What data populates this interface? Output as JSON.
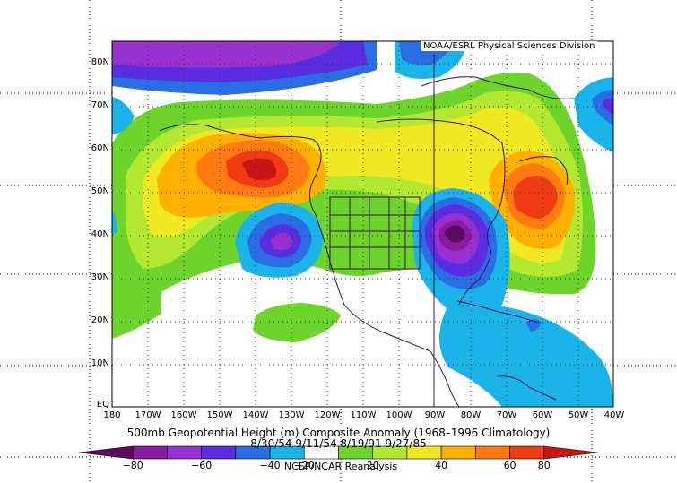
{
  "credit": "NOAA/ESRL Physical Sciences Division",
  "title": "500mb Geopotential Height (m) Composite Anomaly (1968–1996 Climatology)",
  "dates": "8/30/54 9/11/54 8/19/91 9/27/85",
  "source": "NCEP/NCAR Reanalysis",
  "lat_labels": [
    "80N",
    "70N",
    "60N",
    "50N",
    "40N",
    "30N",
    "20N",
    "10N",
    "EQ"
  ],
  "lon_labels": [
    "180",
    "170W",
    "160W",
    "150W",
    "140W",
    "130W",
    "120W",
    "110W",
    "100W",
    "90W",
    "80W",
    "70W",
    "60W",
    "50W",
    "40W"
  ],
  "colorbar": {
    "ticks": [
      "−80",
      "−60",
      "−40",
      "−20",
      "20",
      "40",
      "60",
      "80"
    ],
    "colors": [
      "#5c0a5c",
      "#8a1aa0",
      "#9b30d0",
      "#5a2de0",
      "#2a6ee6",
      "#1ab4e8",
      "#ffffff",
      "#6cd42a",
      "#b4e830",
      "#f0e820",
      "#ffb000",
      "#ff7a10",
      "#f03a14",
      "#c81414"
    ]
  },
  "map": {
    "lat_range": [
      0,
      85
    ],
    "lon_range": [
      -180,
      -40
    ],
    "features": [
      {
        "name": "alaska-ridge",
        "anomaly": 70
      },
      {
        "name": "northeast-atlantic-ridge",
        "anomaly": 70
      },
      {
        "name": "southeast-us-trough",
        "anomaly": -70
      },
      {
        "name": "california-trough",
        "anomaly": -45
      },
      {
        "name": "arctic-trough",
        "anomaly": -50
      }
    ]
  }
}
